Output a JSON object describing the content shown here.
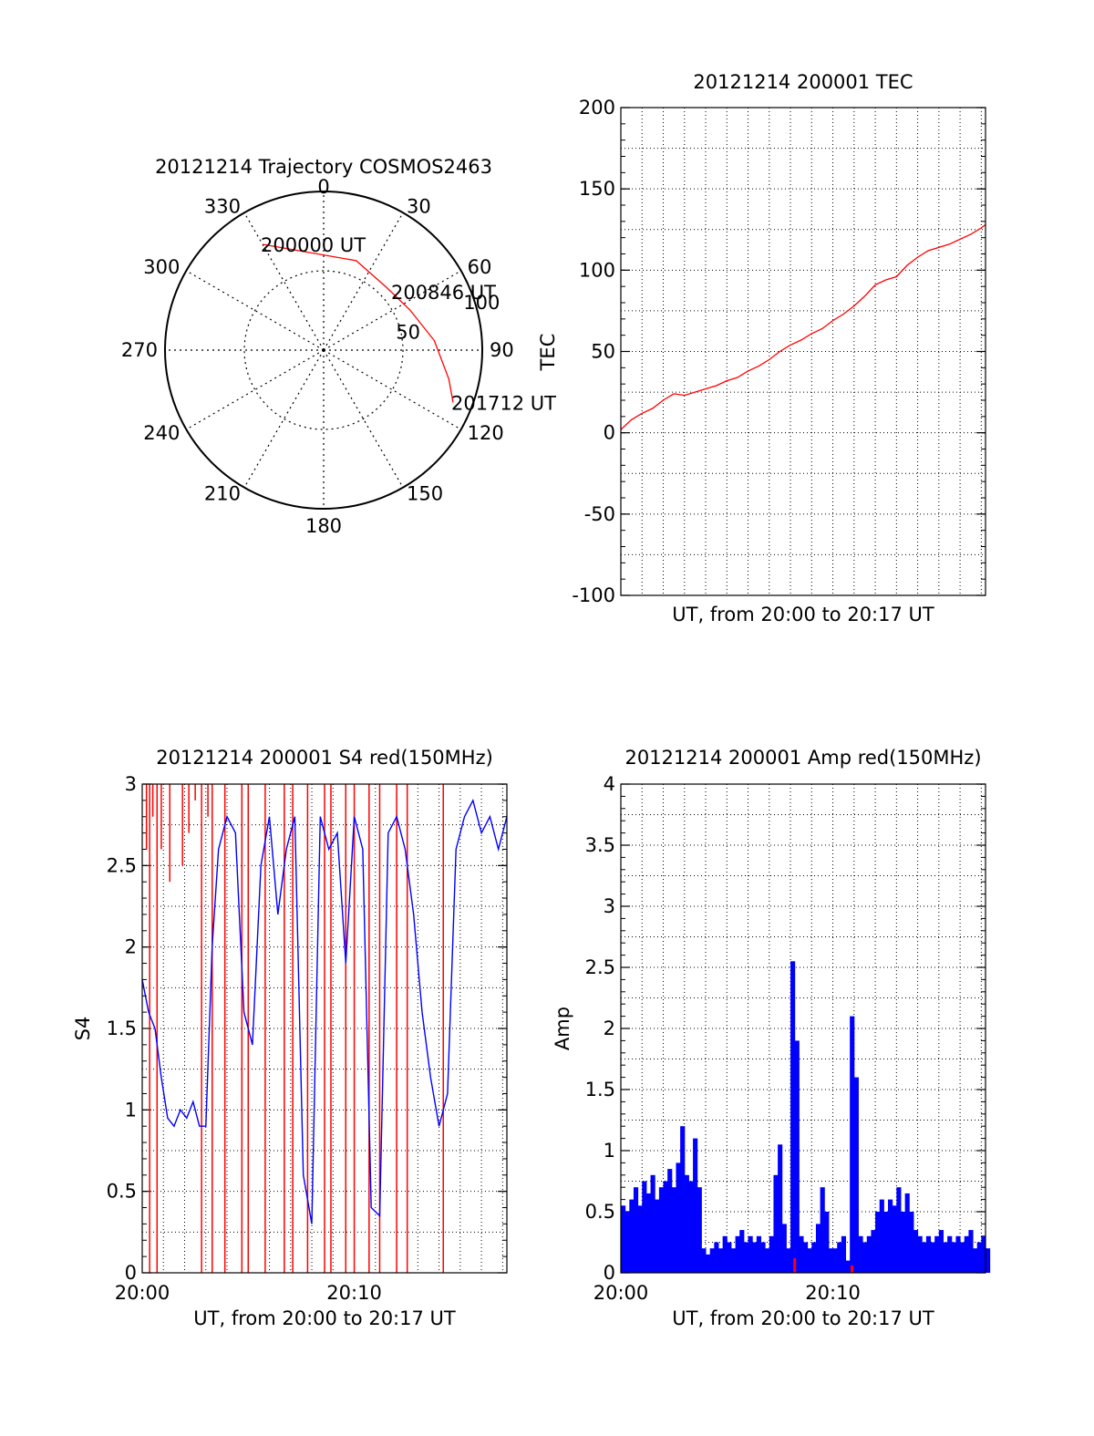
{
  "colors": {
    "red": "#ff0000",
    "blue": "#0000ff",
    "axis": "#000000"
  },
  "chart_data": [
    {
      "type": "polar",
      "title": "20121214 Trajectory COSMOS2463",
      "angle_labels": [
        "0",
        "30",
        "60",
        "90",
        "120",
        "150",
        "180",
        "210",
        "240",
        "270",
        "300",
        "330"
      ],
      "radius_labels": [
        "50",
        "100"
      ],
      "r_max": 100,
      "series": [
        {
          "color": "red",
          "points": [
            {
              "az": 330,
              "r": 77
            },
            {
              "az": 20,
              "r": 60
            },
            {
              "az": 45,
              "r": 56
            },
            {
              "az": 65,
              "r": 60
            },
            {
              "az": 85,
              "r": 70
            },
            {
              "az": 103,
              "r": 81
            },
            {
              "az": 112,
              "r": 88
            }
          ]
        }
      ],
      "annotations": [
        {
          "text": "200000 UT",
          "az": 330,
          "r": 77
        },
        {
          "text": "200846 UT",
          "az": 50,
          "r": 57
        },
        {
          "text": "201712 UT",
          "az": 112,
          "r": 88
        }
      ]
    },
    {
      "type": "line",
      "title": "20121214 200001 TEC",
      "xlabel": "UT, from 20:00 to 20:17 UT",
      "ylabel": "TEC",
      "xlim": [
        0,
        17.2
      ],
      "ylim": [
        -100,
        200
      ],
      "yticks": [
        "-100",
        "-50",
        "0",
        "50",
        "100",
        "150",
        "200"
      ],
      "grid": true,
      "series": [
        {
          "color": "red",
          "x": [
            0,
            0.5,
            1,
            1.5,
            2,
            2.5,
            3,
            3.5,
            4,
            4.5,
            5,
            5.5,
            6,
            6.5,
            7,
            7.5,
            8,
            8.5,
            9,
            9.5,
            10,
            10.5,
            11,
            11.5,
            12,
            12.5,
            13,
            13.5,
            14,
            14.5,
            15,
            15.5,
            16,
            16.5,
            17,
            17.2
          ],
          "y": [
            2,
            8,
            12,
            15,
            20,
            24,
            23,
            25,
            27,
            29,
            32,
            34,
            38,
            41,
            45,
            50,
            54,
            57,
            61,
            64,
            69,
            73,
            78,
            84,
            91,
            94,
            96,
            103,
            108,
            112,
            114,
            116,
            119,
            122,
            126,
            128
          ]
        }
      ]
    },
    {
      "type": "line",
      "title": "20121214 200001 S4 red(150MHz)",
      "xlabel": "UT, from 20:00 to 20:17 UT",
      "ylabel": "S4",
      "xlim": [
        0,
        17.2
      ],
      "ylim": [
        0,
        3
      ],
      "xticks": [
        {
          "value": 0,
          "label": "20:00"
        },
        {
          "value": 10,
          "label": "20:10"
        }
      ],
      "yticks": [
        "0",
        "0.5",
        "1",
        "1.5",
        "2",
        "2.5",
        "3"
      ],
      "grid": true,
      "series": [
        {
          "color": "red",
          "x": [
            0.1,
            0.2,
            0.35,
            0.5,
            0.7,
            0.9,
            1.1,
            1.3,
            1.6,
            1.9,
            2.2,
            2.5,
            2.8,
            3.1,
            3.3,
            3.6,
            3.9,
            4.4,
            4.7,
            5.0,
            5.3,
            5.8,
            6.2,
            6.7,
            7.1,
            7.4,
            7.8,
            8.2,
            8.6,
            8.9,
            9.2,
            9.6,
            10.0,
            10.3,
            10.7,
            11.2,
            11.6,
            12.0,
            12.5,
            13.1,
            14.2,
            14.8
          ],
          "y": [
            3.0,
            2.6,
            0.0,
            2.8,
            0.0,
            2.6,
            3.0,
            2.4,
            3.0,
            2.5,
            2.7,
            2.9,
            0.0,
            2.8,
            0.0,
            3.0,
            0.0,
            3.0,
            0.0,
            0.0,
            3.0,
            0.0,
            3.0,
            0.0,
            0.0,
            3.0,
            0.0,
            3.0,
            0.0,
            0.0,
            3.0,
            0.0,
            0.0,
            3.0,
            0.0,
            0.0,
            3.0,
            0.0,
            0.0,
            3.0,
            0.0,
            3.0
          ]
        },
        {
          "color": "blue",
          "x": [
            0,
            0.3,
            0.6,
            0.9,
            1.2,
            1.5,
            1.8,
            2.1,
            2.4,
            2.7,
            3.0,
            3.3,
            3.6,
            4.0,
            4.4,
            4.8,
            5.2,
            5.6,
            6.0,
            6.4,
            6.8,
            7.2,
            7.6,
            8.0,
            8.4,
            8.8,
            9.2,
            9.6,
            10.0,
            10.4,
            10.8,
            11.2,
            11.6,
            12.0,
            12.4,
            12.8,
            13.2,
            13.6,
            14.0,
            14.4,
            14.8,
            15.2,
            15.6,
            16.0,
            16.4,
            16.8,
            17.2
          ],
          "y": [
            1.8,
            1.6,
            1.5,
            1.2,
            0.95,
            0.9,
            1.0,
            0.95,
            1.05,
            0.9,
            0.9,
            2.0,
            2.6,
            2.8,
            2.7,
            1.6,
            1.4,
            2.5,
            2.8,
            2.2,
            2.6,
            2.8,
            0.6,
            0.3,
            2.8,
            2.6,
            2.7,
            1.9,
            2.8,
            2.6,
            0.4,
            0.35,
            2.7,
            2.8,
            2.6,
            2.2,
            1.6,
            1.2,
            0.9,
            1.1,
            2.6,
            2.8,
            2.9,
            2.7,
            2.8,
            2.6,
            2.8
          ]
        }
      ]
    },
    {
      "type": "bar",
      "title": "20121214 200001 Amp red(150MHz)",
      "xlabel": "UT, from 20:00 to 20:17 UT",
      "ylabel": "Amp",
      "xlim": [
        0,
        17.2
      ],
      "ylim": [
        0,
        4
      ],
      "xticks": [
        {
          "value": 0,
          "label": "20:00"
        },
        {
          "value": 10,
          "label": "20:10"
        }
      ],
      "yticks": [
        "0",
        "0.5",
        "1",
        "1.5",
        "2",
        "2.5",
        "3",
        "3.5",
        "4"
      ],
      "grid": true,
      "series": [
        {
          "color": "blue",
          "x": [
            0,
            0.2,
            0.4,
            0.6,
            0.8,
            1.0,
            1.2,
            1.4,
            1.6,
            1.8,
            2.0,
            2.2,
            2.4,
            2.6,
            2.8,
            3.0,
            3.2,
            3.4,
            3.6,
            3.8,
            4.0,
            4.2,
            4.4,
            4.6,
            4.8,
            5.0,
            5.2,
            5.4,
            5.6,
            5.8,
            6.0,
            6.2,
            6.4,
            6.6,
            6.8,
            7.0,
            7.2,
            7.4,
            7.6,
            7.8,
            8.0,
            8.2,
            8.4,
            8.6,
            8.8,
            9.0,
            9.2,
            9.4,
            9.6,
            9.8,
            10.0,
            10.2,
            10.4,
            10.6,
            10.8,
            11.0,
            11.2,
            11.4,
            11.6,
            11.8,
            12.0,
            12.2,
            12.4,
            12.6,
            12.8,
            13.0,
            13.2,
            13.4,
            13.6,
            13.8,
            14.0,
            14.2,
            14.4,
            14.6,
            14.8,
            15.0,
            15.2,
            15.4,
            15.6,
            15.8,
            16.0,
            16.2,
            16.4,
            16.6,
            16.8,
            17.0,
            17.2
          ],
          "y": [
            0.55,
            0.5,
            0.6,
            0.7,
            0.55,
            0.75,
            0.65,
            0.8,
            0.6,
            0.7,
            0.75,
            0.85,
            0.7,
            0.9,
            1.2,
            0.8,
            0.75,
            1.1,
            0.7,
            0.2,
            0.15,
            0.2,
            0.25,
            0.2,
            0.3,
            0.25,
            0.2,
            0.3,
            0.35,
            0.25,
            0.3,
            0.25,
            0.3,
            0.25,
            0.2,
            0.3,
            0.8,
            1.05,
            0.4,
            0.2,
            2.55,
            1.9,
            0.3,
            0.25,
            0.2,
            0.25,
            0.4,
            0.7,
            0.5,
            0.2,
            0.2,
            0.25,
            0.3,
            0.1,
            2.1,
            1.6,
            0.3,
            0.25,
            0.3,
            0.35,
            0.5,
            0.6,
            0.5,
            0.6,
            0.55,
            0.7,
            0.5,
            0.65,
            0.5,
            0.35,
            0.3,
            0.25,
            0.3,
            0.25,
            0.3,
            0.35,
            0.25,
            0.3,
            0.25,
            0.3,
            0.25,
            0.3,
            0.35,
            0.2,
            0.25,
            0.3,
            0.2
          ]
        },
        {
          "color": "red",
          "x": [
            8.2,
            10.9
          ],
          "y": [
            0.12,
            0.06
          ]
        }
      ]
    }
  ]
}
